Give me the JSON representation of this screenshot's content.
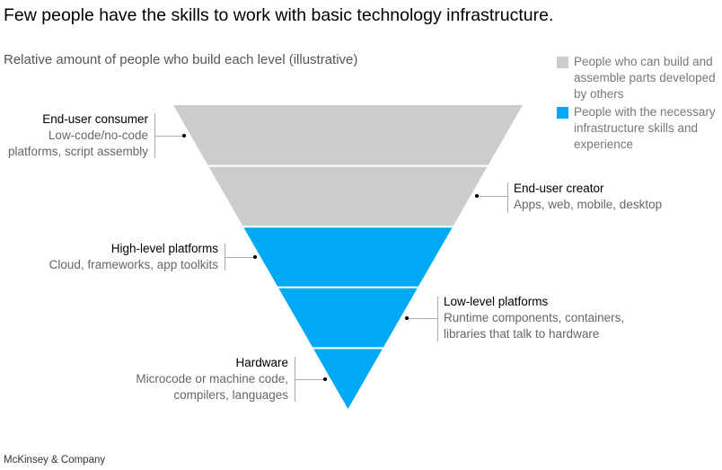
{
  "title": "Few people have the skills to work with basic technology infrastructure.",
  "subtitle": "Relative amount of people who build each level (illustrative)",
  "colors": {
    "gray": "#cccccc",
    "blue": "#00a9f4"
  },
  "legend": [
    {
      "label": "People who can build and assemble parts developed by others",
      "color": "#cccccc"
    },
    {
      "label": "People with the necessary infrastructure skills and experience",
      "color": "#00a9f4"
    }
  ],
  "levels": [
    {
      "name": "End-user consumer",
      "description": "Low-code/no-code platforms, script assembly",
      "group": "gray"
    },
    {
      "name": "End-user creator",
      "description": "Apps, web, mobile, desktop",
      "group": "gray"
    },
    {
      "name": "High-level platforms",
      "description": "Cloud, frameworks, app toolkits",
      "group": "blue"
    },
    {
      "name": "Low-level platforms",
      "description": "Runtime components, containers, libraries that talk to hardware",
      "group": "blue"
    },
    {
      "name": "Hardware",
      "description": "Microcode or machine code, compilers, languages",
      "group": "blue"
    }
  ],
  "source": "McKinsey & Company"
}
